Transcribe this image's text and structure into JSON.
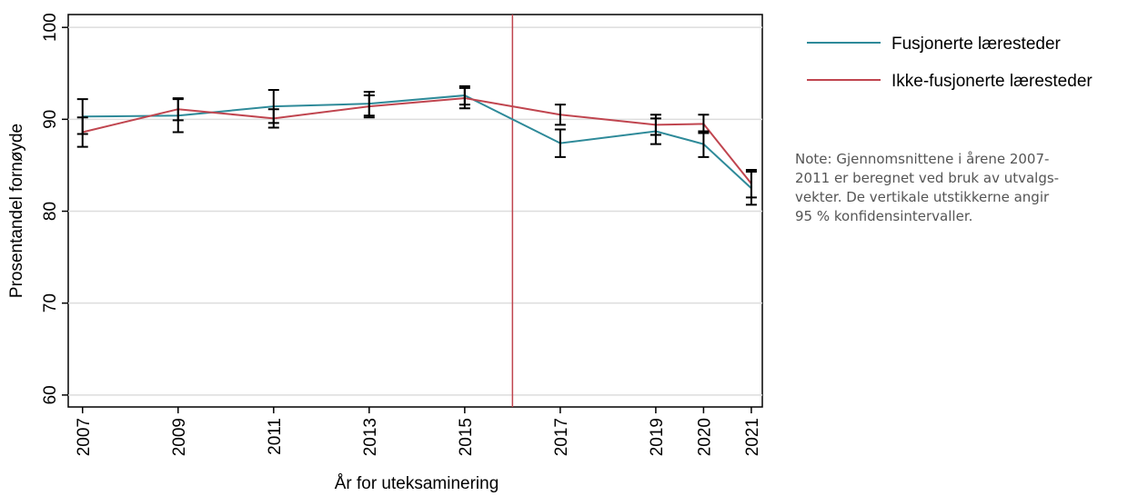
{
  "chart_data": {
    "type": "line",
    "x": [
      2007,
      2009,
      2011,
      2013,
      2015,
      2017,
      2019,
      2020,
      2021
    ],
    "series": [
      {
        "name": "Fusjonerte læresteder",
        "color": "#2e8a99",
        "values": [
          90.3,
          90.4,
          91.4,
          91.7,
          92.6,
          87.4,
          88.7,
          87.3,
          82.5
        ],
        "errors": [
          1.9,
          1.8,
          1.8,
          1.3,
          1.0,
          1.5,
          1.4,
          1.4,
          1.8
        ]
      },
      {
        "name": "Ikke-fusjonerte læresteder",
        "color": "#c0454f",
        "values": [
          88.6,
          91.1,
          90.1,
          91.4,
          92.3,
          90.5,
          89.4,
          89.5,
          83.0
        ],
        "errors": [
          1.6,
          1.2,
          1.0,
          1.2,
          1.1,
          1.1,
          1.1,
          1.0,
          1.5
        ]
      }
    ],
    "xlim": [
      2006.7,
      2021.23
    ],
    "xticks": [
      2007,
      2009,
      2011,
      2013,
      2015,
      2017,
      2019,
      2020,
      2021
    ],
    "ylim": [
      58.7,
      101.4
    ],
    "yticks": [
      60,
      70,
      80,
      90,
      100
    ],
    "grid": true,
    "vline": 2016,
    "vline_color": "#c0454f",
    "xlabel": "År for uteksaminering",
    "ylabel": "Prosentandel fornøyde",
    "note": [
      "Note: Gjennomsnittene i årene 2007-",
      "2011 er beregnet ved bruk av utvalgs-",
      "vekter. De vertikale utstikkerne angir",
      "95 % konfidensintervaller."
    ]
  }
}
